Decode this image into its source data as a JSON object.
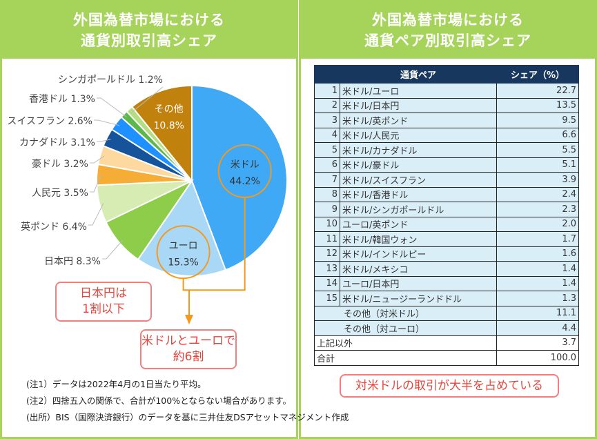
{
  "left_panel": {
    "title_line1": "外国為替市場における",
    "title_line2": "通貨別取引高シェア"
  },
  "right_panel": {
    "title_line1": "外国為替市場における",
    "title_line2": "通貨ペア別取引高シェア"
  },
  "chart_data": [
    {
      "type": "pie",
      "title": "外国為替市場における通貨別取引高シェア",
      "slices": [
        {
          "label": "米ドル",
          "value_label": "44.2%",
          "value": 44.2,
          "color": "#3fa9f5"
        },
        {
          "label": "ユーロ",
          "value_label": "15.3%",
          "value": 15.3,
          "color": "#a9d8f7"
        },
        {
          "label": "日本円",
          "value_label": "8.3%",
          "value": 8.3,
          "color": "#8dcd4a"
        },
        {
          "label": "英ポンド",
          "value_label": "6.4%",
          "value": 6.4,
          "color": "#d6ecb3"
        },
        {
          "label": "人民元",
          "value_label": "3.5%",
          "value": 3.5,
          "color": "#f5ad35"
        },
        {
          "label": "豪ドル",
          "value_label": "3.2%",
          "value": 3.2,
          "color": "#fdd9a0"
        },
        {
          "label": "カナダドル",
          "value_label": "3.1%",
          "value": 3.1,
          "color": "#15549a"
        },
        {
          "label": "スイスフラン",
          "value_label": "2.6%",
          "value": 2.6,
          "color": "#1e90ff"
        },
        {
          "label": "香港ドル",
          "value_label": "1.3%",
          "value": 1.3,
          "color": "#5cb84b"
        },
        {
          "label": "シンガポールドル",
          "value_label": "1.2%",
          "value": 1.2,
          "color": "#b5dd82"
        },
        {
          "label": "その他",
          "value_label": "10.8%",
          "value": 10.8,
          "color": "#c1810d"
        }
      ]
    },
    {
      "type": "table",
      "title": "外国為替市場における通貨ペア別取引高シェア",
      "columns": [
        "通貨ペア",
        "シェア（%）"
      ],
      "rows": [
        {
          "rank": "1",
          "pair": "米ドル/ユーロ",
          "share": "22.7"
        },
        {
          "rank": "2",
          "pair": "米ドル/日本円",
          "share": "13.5"
        },
        {
          "rank": "3",
          "pair": "米ドル/英ポンド",
          "share": "9.5"
        },
        {
          "rank": "4",
          "pair": "米ドル/人民元",
          "share": "6.6"
        },
        {
          "rank": "5",
          "pair": "米ドル/カナダドル",
          "share": "5.5"
        },
        {
          "rank": "6",
          "pair": "米ドル/豪ドル",
          "share": "5.1"
        },
        {
          "rank": "7",
          "pair": "米ドル/スイスフラン",
          "share": "3.9"
        },
        {
          "rank": "8",
          "pair": "米ドル/香港ドル",
          "share": "2.4"
        },
        {
          "rank": "9",
          "pair": "米ドル/シンガポールドル",
          "share": "2.3"
        },
        {
          "rank": "10",
          "pair": "ユーロ/英ポンド",
          "share": "2.0"
        },
        {
          "rank": "11",
          "pair": "米ドル/韓国ウォン",
          "share": "1.7"
        },
        {
          "rank": "12",
          "pair": "米ドル/インドルピー",
          "share": "1.6"
        },
        {
          "rank": "13",
          "pair": "米ドル/メキシコ",
          "share": "1.4"
        },
        {
          "rank": "14",
          "pair": "ユーロ/日本円",
          "share": "1.4"
        },
        {
          "rank": "15",
          "pair": "米ドル/ニュージーランドドル",
          "share": "1.3"
        }
      ],
      "others": [
        {
          "label": "その他（対米ドル）",
          "share": "11.1"
        },
        {
          "label": "その他（対ユーロ）",
          "share": "4.4"
        }
      ],
      "other_than_above": {
        "label": "上記以外",
        "share": "3.7"
      },
      "total": {
        "label": "合計",
        "share": "100.0"
      }
    }
  ],
  "notes": {
    "jpy_line1": "日本円は",
    "jpy_line2": "1割以下",
    "usdeur_line1": "米ドルとユーロで",
    "usdeur_line2": "約6割",
    "usd_majority": "対米ドルの取引が大半を占めている"
  },
  "footnotes": [
    "(注1）データは2022年4月の1日当たり平均。",
    "(注2）四捨五入の関係で、合計が100%とならない場合があります。",
    "(出所）BIS（国際決済銀行）のデータを基に三井住友DSアセットマネジメント作成"
  ]
}
